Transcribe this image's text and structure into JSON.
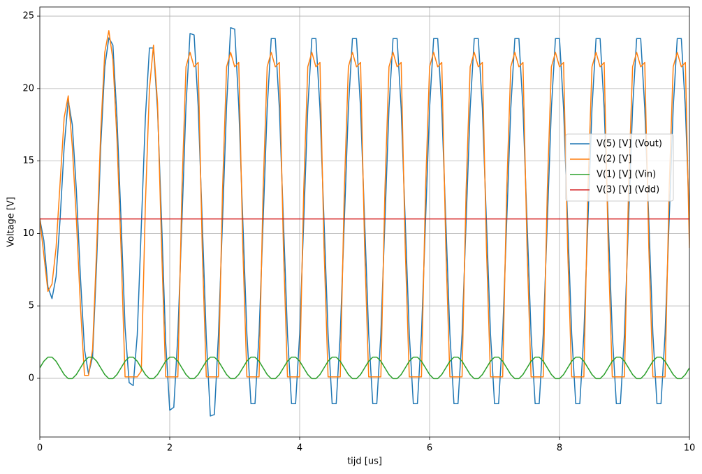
{
  "chart_data": {
    "type": "line",
    "x_label": "tijd [us]",
    "y_label": "Voltage [V]",
    "xlim": [
      0,
      10
    ],
    "ylim": [
      -4.05,
      25.63
    ],
    "xticks": [
      0,
      2,
      4,
      6,
      8,
      10
    ],
    "yticks": [
      0,
      5,
      10,
      15,
      20,
      25
    ],
    "grid": true,
    "legend": "center right",
    "x": [
      0,
      0.0625,
      0.125,
      0.1875,
      0.25,
      0.3125,
      0.375,
      0.4375,
      0.5,
      0.5625,
      0.625,
      0.6875,
      0.75,
      0.8125,
      0.875,
      0.9375,
      1,
      1.0625,
      1.125,
      1.1875,
      1.25,
      1.3125,
      1.375,
      1.4375,
      1.5,
      1.5625,
      1.625,
      1.6875,
      1.75,
      1.8125,
      1.875,
      1.9375,
      2,
      2.0625,
      2.125,
      2.1875,
      2.25,
      2.3125,
      2.375,
      2.4375,
      2.5,
      2.5625,
      2.625,
      2.6875,
      2.75,
      2.8125,
      2.875,
      2.9375,
      3,
      3.0625,
      3.125,
      3.1875,
      3.25,
      3.3125,
      3.375,
      3.4375,
      3.5,
      3.5625,
      3.625,
      3.6875,
      3.75,
      3.8125,
      3.875,
      3.9375,
      4,
      4.0625,
      4.125,
      4.1875,
      4.25,
      4.3125,
      4.375,
      4.4375,
      4.5,
      4.5625,
      4.625,
      4.6875,
      4.75,
      4.8125,
      4.875,
      4.9375,
      5,
      5.0625,
      5.125,
      5.1875,
      5.25,
      5.3125,
      5.375,
      5.4375,
      5.5,
      5.5625,
      5.625,
      5.6875,
      5.75,
      5.8125,
      5.875,
      5.9375,
      6,
      6.0625,
      6.125,
      6.1875,
      6.25,
      6.3125,
      6.375,
      6.4375,
      6.5,
      6.5625,
      6.625,
      6.6875,
      6.75,
      6.8125,
      6.875,
      6.9375,
      7,
      7.0625,
      7.125,
      7.1875,
      7.25,
      7.3125,
      7.375,
      7.4375,
      7.5,
      7.5625,
      7.625,
      7.6875,
      7.75,
      7.8125,
      7.875,
      7.9375,
      8,
      8.0625,
      8.125,
      8.1875,
      8.25,
      8.3125,
      8.375,
      8.4375,
      8.5,
      8.5625,
      8.625,
      8.6875,
      8.75,
      8.8125,
      8.875,
      8.9375,
      9,
      9.0625,
      9.125,
      9.1875,
      9.25,
      9.3125,
      9.375,
      9.4375,
      9.5,
      9.5625,
      9.625,
      9.6875,
      9.75,
      9.8125,
      9.875,
      9.9375,
      10
    ],
    "series": [
      {
        "name": "V(5) [V]  (Vout)",
        "color": "#1f77b4",
        "values": [
          11,
          9.5,
          6.3,
          5.5,
          7,
          11,
          16,
          19.2,
          17.5,
          13,
          7,
          2,
          0.3,
          1.5,
          8,
          16,
          21.5,
          23.5,
          23,
          18,
          11,
          3.5,
          -0.3,
          -0.5,
          3,
          10.5,
          18,
          22.8,
          22.8,
          18.5,
          10.8,
          2.5,
          -2.2,
          -2,
          3,
          10.85,
          18.8,
          23.8,
          23.7,
          18.8,
          10.85,
          2.8,
          -2.6,
          -2.5,
          3,
          10.9,
          18.8,
          24.2,
          24.1,
          18.8,
          10.85,
          3.06,
          -1.75,
          -1.75,
          3.06,
          10.85,
          18.64,
          23.45,
          23.45,
          18.64,
          10.85,
          3.06,
          -1.75,
          -1.75,
          3.06,
          10.85,
          18.64,
          23.45,
          23.45,
          18.64,
          10.85,
          3.06,
          -1.75,
          -1.75,
          3.06,
          10.85,
          18.64,
          23.45,
          23.45,
          18.64,
          10.85,
          3.06,
          -1.75,
          -1.75,
          3.06,
          10.85,
          18.64,
          23.45,
          23.45,
          18.64,
          10.85,
          3.06,
          -1.75,
          -1.75,
          3.06,
          10.85,
          18.64,
          23.45,
          23.45,
          18.64,
          10.85,
          3.06,
          -1.75,
          -1.75,
          3.06,
          10.85,
          18.64,
          23.45,
          23.45,
          18.64,
          10.85,
          3.06,
          -1.75,
          -1.75,
          3.06,
          10.85,
          18.64,
          23.45,
          23.45,
          18.64,
          10.85,
          3.06,
          -1.75,
          -1.75,
          3.06,
          10.85,
          18.64,
          23.45,
          23.45,
          18.64,
          10.85,
          3.06,
          -1.75,
          -1.75,
          3.06,
          10.85,
          18.64,
          23.45,
          23.45,
          18.64,
          10.85,
          3.06,
          -1.75,
          -1.75,
          3.06,
          10.85,
          18.64,
          23.45,
          23.45,
          18.64,
          10.85,
          3.06,
          -1.75,
          -1.75,
          3.06,
          10.85,
          18.64,
          23.45,
          23.45,
          18.64,
          10.85
        ]
      },
      {
        "name": "V(2) [V]",
        "color": "#ff7f0e",
        "values": [
          11,
          8.5,
          6,
          6.5,
          9,
          13.5,
          18,
          19.5,
          16,
          11,
          5,
          0.2,
          0.2,
          2,
          9,
          17,
          22.5,
          24,
          22,
          16.5,
          9,
          0.1,
          0.1,
          0.1,
          0.1,
          0.5,
          12,
          20,
          23,
          19,
          9,
          0.1,
          0.1,
          0.1,
          0.1,
          13,
          21.5,
          22.5,
          21.5,
          21.8,
          9,
          0.1,
          0.1,
          0.1,
          0.1,
          13,
          21.5,
          22.5,
          21.5,
          21.8,
          9,
          0.1,
          0.1,
          0.1,
          0.1,
          13,
          21.5,
          22.5,
          21.5,
          21.8,
          9,
          0.1,
          0.1,
          0.1,
          0.1,
          13,
          21.5,
          22.5,
          21.5,
          21.8,
          9,
          0.1,
          0.1,
          0.1,
          0.1,
          13,
          21.5,
          22.5,
          21.5,
          21.8,
          9,
          0.1,
          0.1,
          0.1,
          0.1,
          13,
          21.5,
          22.5,
          21.5,
          21.8,
          9,
          0.1,
          0.1,
          0.1,
          0.1,
          13,
          21.5,
          22.5,
          21.5,
          21.8,
          9,
          0.1,
          0.1,
          0.1,
          0.1,
          13,
          21.5,
          22.5,
          21.5,
          21.8,
          9,
          0.1,
          0.1,
          0.1,
          0.1,
          13,
          21.5,
          22.5,
          21.5,
          21.8,
          9,
          0.1,
          0.1,
          0.1,
          0.1,
          13,
          21.5,
          22.5,
          21.5,
          21.8,
          9,
          0.1,
          0.1,
          0.1,
          0.1,
          13,
          21.5,
          22.5,
          21.5,
          21.8,
          9,
          0.1,
          0.1,
          0.1,
          0.1,
          13,
          21.5,
          22.5,
          21.5,
          21.8,
          9,
          0.1,
          0.1,
          0.1,
          0.1,
          13,
          21.5,
          22.5,
          21.5,
          21.8,
          9
        ]
      },
      {
        "name": "V(1) [V]  (Vin)",
        "color": "#2ca02c",
        "values": [
          0.72,
          1.18,
          1.46,
          1.46,
          1.18,
          0.72,
          0.26,
          -0.02,
          -0.02,
          0.26,
          0.72,
          1.18,
          1.46,
          1.46,
          1.18,
          0.72,
          0.26,
          -0.02,
          -0.02,
          0.26,
          0.72,
          1.18,
          1.46,
          1.46,
          1.18,
          0.72,
          0.26,
          -0.02,
          -0.02,
          0.26,
          0.72,
          1.18,
          1.46,
          1.46,
          1.18,
          0.72,
          0.26,
          -0.02,
          -0.02,
          0.26,
          0.72,
          1.18,
          1.46,
          1.46,
          1.18,
          0.72,
          0.26,
          -0.02,
          -0.02,
          0.26,
          0.72,
          1.18,
          1.46,
          1.46,
          1.18,
          0.72,
          0.26,
          -0.02,
          -0.02,
          0.26,
          0.72,
          1.18,
          1.46,
          1.46,
          1.18,
          0.72,
          0.26,
          -0.02,
          -0.02,
          0.26,
          0.72,
          1.18,
          1.46,
          1.46,
          1.18,
          0.72,
          0.26,
          -0.02,
          -0.02,
          0.26,
          0.72,
          1.18,
          1.46,
          1.46,
          1.18,
          0.72,
          0.26,
          -0.02,
          -0.02,
          0.26,
          0.72,
          1.18,
          1.46,
          1.46,
          1.18,
          0.72,
          0.26,
          -0.02,
          -0.02,
          0.26,
          0.72,
          1.18,
          1.46,
          1.46,
          1.18,
          0.72,
          0.26,
          -0.02,
          -0.02,
          0.26,
          0.72,
          1.18,
          1.46,
          1.46,
          1.18,
          0.72,
          0.26,
          -0.02,
          -0.02,
          0.26,
          0.72,
          1.18,
          1.46,
          1.46,
          1.18,
          0.72,
          0.26,
          -0.02,
          -0.02,
          0.26,
          0.72,
          1.18,
          1.46,
          1.46,
          1.18,
          0.72,
          0.26,
          -0.02,
          -0.02,
          0.26,
          0.72,
          1.18,
          1.46,
          1.46,
          1.18,
          0.72,
          0.26,
          -0.02,
          -0.02,
          0.26,
          0.72,
          1.18,
          1.46,
          1.46,
          1.18,
          0.72,
          0.26,
          -0.02,
          -0.02,
          0.26,
          0.72
        ]
      },
      {
        "name": "V(3) [V]  (Vdd)",
        "color": "#d62728",
        "x": [
          0,
          10
        ],
        "values": [
          11,
          11
        ]
      }
    ]
  }
}
